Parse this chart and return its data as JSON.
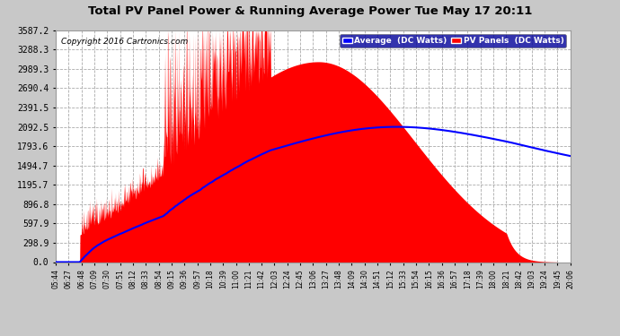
{
  "title": "Total PV Panel Power & Running Average Power Tue May 17 20:11",
  "copyright": "Copyright 2016 Cartronics.com",
  "y_ticks": [
    0.0,
    298.9,
    597.9,
    896.8,
    1195.7,
    1494.7,
    1793.6,
    2092.5,
    2391.5,
    2690.4,
    2989.3,
    3288.3,
    3587.2
  ],
  "x_labels": [
    "05:44",
    "06:27",
    "06:48",
    "07:09",
    "07:30",
    "07:51",
    "08:12",
    "08:33",
    "08:54",
    "09:15",
    "09:36",
    "09:57",
    "10:18",
    "10:39",
    "11:00",
    "11:21",
    "11:42",
    "12:03",
    "12:24",
    "12:45",
    "13:06",
    "13:27",
    "13:48",
    "14:09",
    "14:30",
    "14:51",
    "15:12",
    "15:33",
    "15:54",
    "16:15",
    "16:36",
    "16:57",
    "17:18",
    "17:39",
    "18:00",
    "18:21",
    "18:42",
    "19:03",
    "19:24",
    "19:45",
    "20:06"
  ],
  "legend_avg_label": "Average  (DC Watts)",
  "legend_pv_label": "PV Panels  (DC Watts)",
  "bg_color": "#c8c8c8",
  "plot_bg_color": "#ffffff",
  "grid_color": "#aaaaaa",
  "pv_fill_color": "#ff0000",
  "avg_line_color": "#0000ff",
  "title_color": "#000000",
  "ymax": 3587.2,
  "ymin": 0.0
}
